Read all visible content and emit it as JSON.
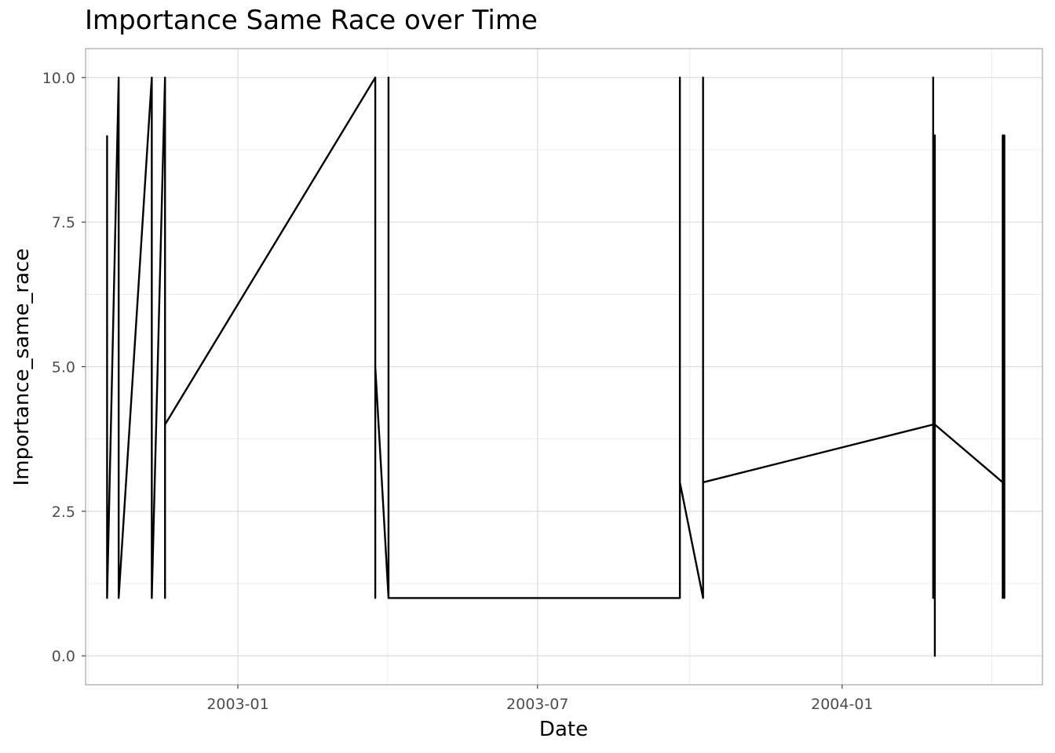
{
  "chart_data": {
    "type": "line",
    "title": "Importance Same Race over Time",
    "xlabel": "Date",
    "ylabel": "Importance_same_race",
    "x_ticks": [
      "2003-01",
      "2003-07",
      "2004-01"
    ],
    "y_ticks": [
      "0.0",
      "2.5",
      "5.0",
      "7.5",
      "10.0"
    ],
    "xlim": [
      "2002-10-01",
      "2004-05-01"
    ],
    "ylim": [
      -0.5,
      10.5
    ],
    "grid": true,
    "line_color": "#000000",
    "series": [
      {
        "points": [
          [
            "2002-10-14",
            9
          ],
          [
            "2002-10-14",
            1
          ],
          [
            "2002-10-14",
            8
          ],
          [
            "2002-10-14",
            1
          ],
          [
            "2002-10-21",
            10
          ],
          [
            "2002-10-21",
            1
          ],
          [
            "2002-11-10",
            10
          ],
          [
            "2002-11-10",
            1
          ],
          [
            "2002-11-10",
            8
          ],
          [
            "2002-11-10",
            1
          ],
          [
            "2002-11-18",
            10
          ],
          [
            "2002-11-18",
            1
          ],
          [
            "2002-11-18",
            8
          ],
          [
            "2002-11-18",
            4
          ],
          [
            "2003-03-25",
            10
          ],
          [
            "2003-03-25",
            1
          ],
          [
            "2003-03-25",
            5
          ],
          [
            "2003-04-02",
            1
          ],
          [
            "2003-04-02",
            10
          ],
          [
            "2003-04-02",
            1
          ],
          [
            "2003-09-25",
            1
          ],
          [
            "2003-09-25",
            10
          ],
          [
            "2003-09-25",
            1
          ],
          [
            "2003-09-25",
            8
          ],
          [
            "2003-09-25",
            3
          ],
          [
            "2003-10-09",
            1
          ],
          [
            "2003-10-09",
            10
          ],
          [
            "2003-10-09",
            1
          ],
          [
            "2003-10-09",
            9
          ],
          [
            "2003-10-09",
            1
          ],
          [
            "2003-10-09",
            3
          ],
          [
            "2004-02-25",
            4
          ],
          [
            "2004-02-25",
            10
          ],
          [
            "2004-02-25",
            1
          ],
          [
            "2004-02-26",
            9
          ],
          [
            "2004-02-26",
            0
          ],
          [
            "2004-02-26",
            8
          ],
          [
            "2004-02-26",
            4
          ],
          [
            "2004-04-07",
            3
          ],
          [
            "2004-04-07",
            9
          ],
          [
            "2004-04-07",
            1
          ],
          [
            "2004-04-07",
            8
          ],
          [
            "2004-04-07",
            1
          ],
          [
            "2004-04-08",
            9
          ],
          [
            "2004-04-08",
            1
          ],
          [
            "2004-04-08",
            8
          ],
          [
            "2004-04-08",
            1
          ]
        ]
      }
    ]
  }
}
